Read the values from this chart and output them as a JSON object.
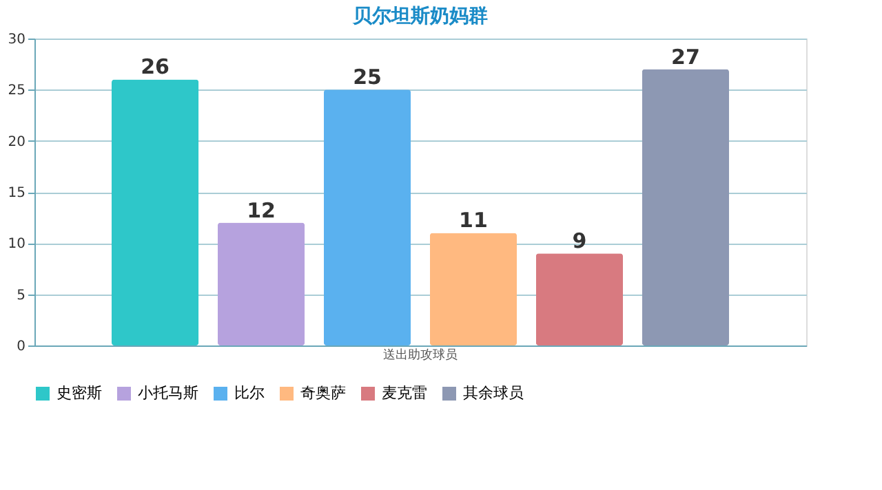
{
  "chart_data": {
    "type": "bar",
    "title": "贝尔坦斯奶妈群",
    "categories": [
      "送出助攻球员"
    ],
    "series": [
      {
        "name": "史密斯",
        "color": "#2ec7c9",
        "values": [
          26
        ]
      },
      {
        "name": "小托马斯",
        "color": "#b6a2de",
        "values": [
          12
        ]
      },
      {
        "name": "比尔",
        "color": "#5ab1ef",
        "values": [
          25
        ]
      },
      {
        "name": "奇奥萨",
        "color": "#ffb980",
        "values": [
          11
        ]
      },
      {
        "name": "麦克雷",
        "color": "#d87a80",
        "values": [
          9
        ]
      },
      {
        "name": "其余球员",
        "color": "#8d98b3",
        "values": [
          27
        ]
      }
    ],
    "ylim": [
      0,
      30
    ],
    "yticks": [
      0,
      5,
      10,
      15,
      20,
      25,
      30
    ],
    "grid": "y",
    "legend": "bottom",
    "data_labels": true
  }
}
